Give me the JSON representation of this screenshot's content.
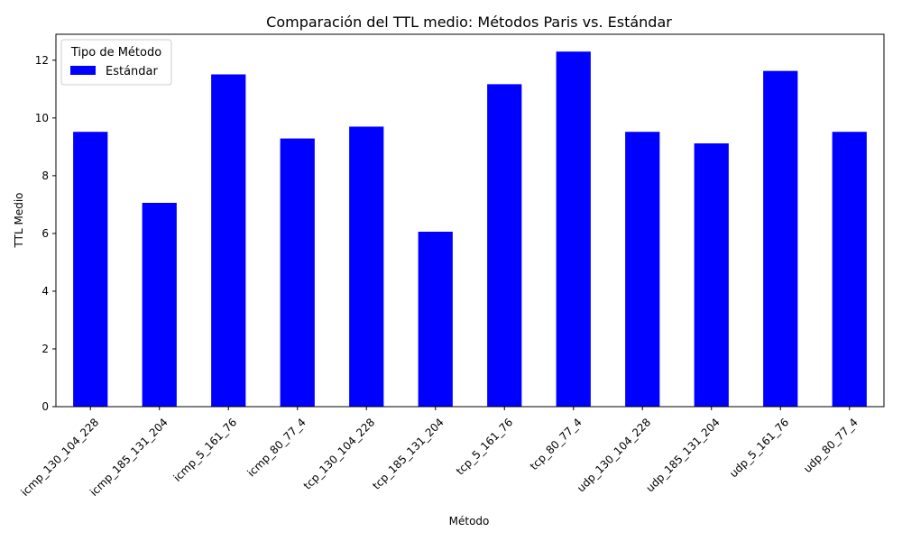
{
  "chart_data": {
    "type": "bar",
    "title": "Comparación del TTL medio: Métodos Paris vs. Estándar",
    "xlabel": "Método",
    "ylabel": "TTL Medio",
    "ylim": [
      0,
      12.9
    ],
    "yticks": [
      0,
      2,
      4,
      6,
      8,
      10,
      12
    ],
    "categories": [
      "icmp_130_104_228",
      "icmp_185_131_204",
      "icmp_5_161_76",
      "icmp_80_77_4",
      "tcp_130_104_228",
      "tcp_185_131_204",
      "tcp_5_161_76",
      "tcp_80_77_4",
      "udp_130_104_228",
      "udp_185_131_204",
      "udp_5_161_76",
      "udp_80_77_4"
    ],
    "series": [
      {
        "name": "Estándar",
        "color": "#0000ff",
        "values": [
          9.52,
          7.06,
          11.51,
          9.29,
          9.7,
          6.06,
          11.17,
          12.3,
          9.52,
          9.12,
          11.63,
          9.52
        ]
      }
    ],
    "legend": {
      "title": "Tipo de Método",
      "placement": "top-left"
    },
    "grid": false
  }
}
